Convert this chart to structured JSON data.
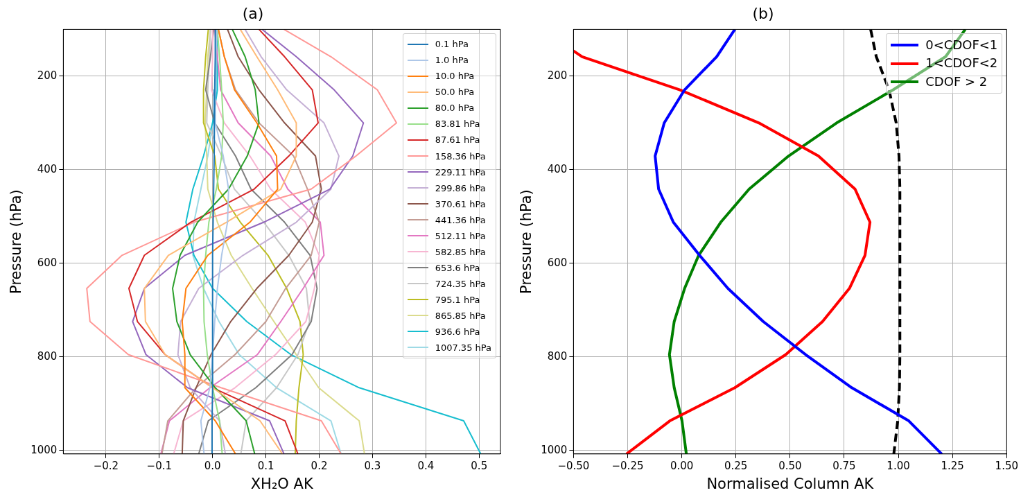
{
  "chart_data": [
    {
      "type": "line",
      "title": "(a)",
      "xlabel": "XH₂O AK",
      "ylabel": "Pressure (hPa)",
      "xlim": [
        -0.28,
        0.54
      ],
      "ylim": [
        1007.35,
        100
      ],
      "xticks": [
        {
          "value": -0.2,
          "label": "−0.2"
        },
        {
          "value": -0.1,
          "label": "−0.1"
        },
        {
          "value": 0,
          "label": "0.0"
        },
        {
          "value": 0.1,
          "label": "0.1"
        },
        {
          "value": 0.2,
          "label": "0.2"
        },
        {
          "value": 0.3,
          "label": "0.3"
        },
        {
          "value": 0.4,
          "label": "0.4"
        },
        {
          "value": 0.5,
          "label": "0.5"
        }
      ],
      "yticks": [
        200,
        400,
        600,
        800,
        1000
      ],
      "grid": true,
      "legend": "top right",
      "marker": "none",
      "series": [
        {
          "name": "0.1 hPa",
          "color": "#1f77b4",
          "x": [
            0.005,
            0.005,
            0.004,
            0.003,
            0.003,
            0.002,
            0.001,
            0.0,
            0.0,
            0.0,
            0.0,
            0.0,
            -0.001,
            -0.001
          ],
          "values": [
            100,
            158.36,
            229.11,
            299.86,
            370.61,
            441.36,
            512.11,
            582.85,
            653.6,
            724.35,
            795.1,
            865.85,
            936.6,
            1007.35
          ]
        },
        {
          "name": "1.0 hPa",
          "color": "#aec7e8",
          "x": [
            0.008,
            0.006,
            0.005,
            0.005,
            0.02,
            0.03,
            0.028,
            0.017,
            0.009,
            0.004,
            0.0,
            -0.005,
            -0.022,
            -0.016
          ],
          "values": [
            100,
            158.36,
            229.11,
            299.86,
            370.61,
            441.36,
            512.11,
            582.85,
            653.6,
            724.35,
            795.1,
            865.85,
            936.6,
            1007.35
          ]
        },
        {
          "name": "10.0 hPa",
          "color": "#ff7f0e",
          "x": [
            0.011,
            0.022,
            0.041,
            0.083,
            0.12,
            0.122,
            0.07,
            -0.009,
            -0.05,
            -0.057,
            -0.052,
            -0.052,
            0.005,
            0.043
          ],
          "values": [
            100,
            158.36,
            229.11,
            299.86,
            370.61,
            441.36,
            512.11,
            582.85,
            653.6,
            724.35,
            795.1,
            865.85,
            936.6,
            1007.35
          ]
        },
        {
          "name": "50.0 hPa",
          "color": "#ffbb78",
          "x": [
            0.052,
            0.083,
            0.122,
            0.157,
            0.157,
            0.128,
            0.026,
            -0.083,
            -0.128,
            -0.126,
            -0.089,
            0.0,
            0.089,
            0.131
          ],
          "values": [
            100,
            158.36,
            229.11,
            299.86,
            370.61,
            441.36,
            512.11,
            582.85,
            653.6,
            724.35,
            795.1,
            865.85,
            936.6,
            1007.35
          ]
        },
        {
          "name": "80.0 hPa",
          "color": "#2ca02c",
          "x": [
            0.037,
            0.061,
            0.08,
            0.087,
            0.065,
            0.03,
            -0.028,
            -0.061,
            -0.075,
            -0.067,
            -0.042,
            0.005,
            0.063,
            0.079
          ],
          "values": [
            100,
            158.36,
            229.11,
            299.86,
            370.61,
            441.36,
            512.11,
            582.85,
            653.6,
            724.35,
            795.1,
            865.85,
            936.6,
            1007.35
          ]
        },
        {
          "name": "83.81 hPa",
          "color": "#98df8a",
          "x": [
            0.009,
            0.013,
            0.017,
            0.02,
            0.017,
            0.007,
            -0.007,
            -0.013,
            -0.017,
            -0.016,
            -0.01,
            0.0,
            0.013,
            0.018
          ],
          "values": [
            100,
            158.36,
            229.11,
            299.86,
            370.61,
            441.36,
            512.11,
            582.85,
            653.6,
            724.35,
            795.1,
            865.85,
            936.6,
            1007.35
          ]
        },
        {
          "name": "87.61 hPa",
          "color": "#d62728",
          "x": [
            0.087,
            0.135,
            0.187,
            0.198,
            0.143,
            0.078,
            -0.041,
            -0.128,
            -0.157,
            -0.141,
            -0.089,
            0.0,
            0.136,
            0.16
          ],
          "values": [
            100,
            158.36,
            229.11,
            299.86,
            370.61,
            441.36,
            512.11,
            582.85,
            653.6,
            724.35,
            795.1,
            865.85,
            936.6,
            1007.35
          ]
        },
        {
          "name": "158.36 hPa",
          "color": "#ff9896",
          "x": [
            0.134,
            0.222,
            0.309,
            0.345,
            0.269,
            0.185,
            -0.035,
            -0.17,
            -0.236,
            -0.23,
            -0.158,
            0.016,
            0.204,
            0.241
          ],
          "values": [
            100,
            158.36,
            229.11,
            299.86,
            370.61,
            441.36,
            512.11,
            582.85,
            653.6,
            724.35,
            795.1,
            865.85,
            936.6,
            1007.35
          ]
        },
        {
          "name": "229.11 hPa",
          "color": "#9467bd",
          "x": [
            0.093,
            0.157,
            0.228,
            0.283,
            0.263,
            0.22,
            0.096,
            -0.052,
            -0.128,
            -0.15,
            -0.125,
            -0.047,
            0.107,
            0.134
          ],
          "values": [
            100,
            158.36,
            229.11,
            299.86,
            370.61,
            441.36,
            512.11,
            582.85,
            653.6,
            724.35,
            795.1,
            865.85,
            936.6,
            1007.35
          ]
        },
        {
          "name": "299.86 hPa",
          "color": "#c5b0d5",
          "x": [
            0.061,
            0.091,
            0.139,
            0.209,
            0.237,
            0.222,
            0.157,
            0.057,
            -0.026,
            -0.06,
            -0.065,
            -0.042,
            0.013,
            0.024
          ],
          "values": [
            100,
            158.36,
            229.11,
            299.86,
            370.61,
            441.36,
            512.11,
            582.85,
            653.6,
            724.35,
            795.1,
            865.85,
            936.6,
            1007.35
          ]
        },
        {
          "name": "370.61 hPa",
          "color": "#8c564b",
          "x": [
            0.028,
            0.048,
            0.087,
            0.135,
            0.193,
            0.204,
            0.187,
            0.143,
            0.083,
            0.034,
            -0.003,
            -0.031,
            -0.055,
            -0.057
          ],
          "values": [
            100,
            158.36,
            229.11,
            299.86,
            370.61,
            441.36,
            512.11,
            582.85,
            653.6,
            724.35,
            795.1,
            865.85,
            936.6,
            1007.35
          ]
        },
        {
          "name": "441.36 hPa",
          "color": "#c49c94",
          "x": [
            0.011,
            0.022,
            0.043,
            0.087,
            0.152,
            0.178,
            0.2,
            0.185,
            0.137,
            0.1,
            0.042,
            -0.031,
            -0.084,
            -0.095
          ],
          "values": [
            100,
            158.36,
            229.11,
            299.86,
            370.61,
            441.36,
            512.11,
            582.85,
            653.6,
            724.35,
            795.1,
            865.85,
            936.6,
            1007.35
          ]
        },
        {
          "name": "512.11 hPa",
          "color": "#e377c2",
          "x": [
            0.004,
            0.009,
            0.015,
            0.048,
            0.109,
            0.141,
            0.202,
            0.209,
            0.17,
            0.128,
            0.084,
            -0.005,
            -0.081,
            -0.097
          ],
          "values": [
            100,
            158.36,
            229.11,
            299.86,
            370.61,
            441.36,
            512.11,
            582.85,
            653.6,
            724.35,
            795.1,
            865.85,
            936.6,
            1007.35
          ]
        },
        {
          "name": "582.85 hPa",
          "color": "#f7b6d2",
          "x": [
            0.0,
            0.0,
            -0.002,
            0.022,
            0.07,
            0.109,
            0.174,
            0.2,
            0.191,
            0.175,
            0.118,
            0.042,
            -0.055,
            -0.073
          ],
          "values": [
            100,
            158.36,
            229.11,
            299.86,
            370.61,
            441.36,
            512.11,
            582.85,
            653.6,
            724.35,
            795.1,
            865.85,
            936.6,
            1007.35
          ]
        },
        {
          "name": "653.6 hPa",
          "color": "#7f7f7f",
          "x": [
            0.002,
            -0.004,
            -0.013,
            0.004,
            0.043,
            0.072,
            0.135,
            0.183,
            0.196,
            0.185,
            0.149,
            0.081,
            -0.008,
            -0.026
          ],
          "values": [
            100,
            158.36,
            229.11,
            299.86,
            370.61,
            441.36,
            512.11,
            582.85,
            653.6,
            724.35,
            795.1,
            865.85,
            936.6,
            1007.35
          ]
        },
        {
          "name": "724.35 hPa",
          "color": "#c7c7c7",
          "x": [
            -0.004,
            -0.006,
            -0.009,
            -0.011,
            0.017,
            0.041,
            0.096,
            0.143,
            0.176,
            0.182,
            0.16,
            0.12,
            0.063,
            0.053
          ],
          "values": [
            100,
            158.36,
            229.11,
            299.86,
            370.61,
            441.36,
            512.11,
            582.85,
            653.6,
            724.35,
            795.1,
            865.85,
            936.6,
            1007.35
          ]
        },
        {
          "name": "795.1 hPa",
          "color": "#bcbd22",
          "x": [
            -0.008,
            -0.013,
            -0.017,
            -0.017,
            0.004,
            0.011,
            0.052,
            0.104,
            0.139,
            0.164,
            0.17,
            0.162,
            0.157,
            0.155
          ],
          "values": [
            100,
            158.36,
            229.11,
            299.86,
            370.61,
            441.36,
            512.11,
            582.85,
            653.6,
            724.35,
            795.1,
            865.85,
            936.6,
            1007.35
          ]
        },
        {
          "name": "865.85 hPa",
          "color": "#dbdb8d",
          "x": [
            -0.004,
            -0.009,
            -0.011,
            -0.014,
            -0.011,
            -0.009,
            0.009,
            0.035,
            0.074,
            0.115,
            0.157,
            0.199,
            0.275,
            0.285
          ],
          "values": [
            100,
            158.36,
            229.11,
            299.86,
            370.61,
            441.36,
            512.11,
            582.85,
            653.6,
            724.35,
            795.1,
            865.85,
            936.6,
            1007.35
          ]
        },
        {
          "name": "936.6 hPa",
          "color": "#17becf",
          "x": [
            0.007,
            0.009,
            0.009,
            0.0,
            -0.017,
            -0.037,
            -0.05,
            -0.035,
            0.0,
            0.064,
            0.147,
            0.275,
            0.471,
            0.503
          ],
          "values": [
            100,
            158.36,
            229.11,
            299.86,
            370.61,
            441.36,
            512.11,
            582.85,
            653.6,
            724.35,
            795.1,
            865.85,
            936.6,
            1007.35
          ]
        },
        {
          "name": "1007.35 hPa",
          "color": "#9edae5",
          "x": [
            0.009,
            0.007,
            0.007,
            0.0,
            -0.009,
            -0.022,
            -0.035,
            -0.037,
            -0.017,
            0.012,
            0.05,
            0.12,
            0.222,
            0.241
          ],
          "values": [
            100,
            158.36,
            229.11,
            299.86,
            370.61,
            441.36,
            512.11,
            582.85,
            653.6,
            724.35,
            795.1,
            865.85,
            936.6,
            1007.35
          ]
        }
      ]
    },
    {
      "type": "line",
      "title": "(b)",
      "xlabel": "Normalised Column AK",
      "ylabel": "Pressure (hPa)",
      "xlim": [
        -0.5,
        1.5
      ],
      "ylim": [
        1007.35,
        100
      ],
      "xticks": [
        {
          "value": -0.5,
          "label": "−0.50"
        },
        {
          "value": -0.25,
          "label": "−0.25"
        },
        {
          "value": 0,
          "label": "0.00"
        },
        {
          "value": 0.25,
          "label": "0.25"
        },
        {
          "value": 0.5,
          "label": "0.50"
        },
        {
          "value": 0.75,
          "label": "0.75"
        },
        {
          "value": 1,
          "label": "1.00"
        },
        {
          "value": 1.25,
          "label": "1.25"
        },
        {
          "value": 1.5,
          "label": "1.50"
        }
      ],
      "yticks": [
        200,
        400,
        600,
        800,
        1000
      ],
      "grid": true,
      "legend": "top right",
      "marker": "none",
      "series": [
        {
          "name": "0<CDOF<1",
          "color": "#0000ff",
          "x": [
            0.245,
            0.161,
            0.013,
            -0.081,
            -0.123,
            -0.107,
            -0.039,
            0.082,
            0.213,
            0.376,
            0.572,
            0.785,
            1.048,
            1.2
          ],
          "values": [
            100,
            158.36,
            229.11,
            299.86,
            370.61,
            441.36,
            512.11,
            582.85,
            653.6,
            724.35,
            795.1,
            865.85,
            936.6,
            1007.35
          ]
        },
        {
          "name": "1<CDOF<2",
          "color": "#ff0000",
          "x": [
            -0.5,
            -0.46,
            -0.009,
            0.356,
            0.631,
            0.8,
            0.869,
            0.846,
            0.774,
            0.65,
            0.48,
            0.245,
            -0.055,
            -0.255
          ],
          "values": [
            146,
            158.36,
            229.11,
            299.86,
            370.61,
            441.36,
            512.11,
            582.85,
            653.6,
            724.35,
            795.1,
            865.85,
            936.6,
            1007.35
          ]
        },
        {
          "name": "CDOF > 2",
          "color": "#008000",
          "x": [
            1.309,
            1.218,
            0.976,
            0.715,
            0.493,
            0.311,
            0.18,
            0.078,
            0.013,
            -0.035,
            -0.057,
            -0.035,
            0.001,
            0.021
          ],
          "values": [
            100,
            158.36,
            229.11,
            299.86,
            370.61,
            441.36,
            512.11,
            582.85,
            653.6,
            724.35,
            795.1,
            865.85,
            936.6,
            1007.35
          ]
        },
        {
          "color": "#000000",
          "line_style": "dashed",
          "x": [
            0.872,
            0.898,
            0.957,
            0.99,
            1.003,
            1.007,
            1.007,
            1.007,
            1.007,
            1.007,
            1.007,
            1.005,
            0.997,
            0.979
          ],
          "values": [
            100,
            158.36,
            229.11,
            299.86,
            370.61,
            441.36,
            512.11,
            582.85,
            653.6,
            724.35,
            795.1,
            865.85,
            936.6,
            1007.35
          ]
        }
      ]
    }
  ]
}
